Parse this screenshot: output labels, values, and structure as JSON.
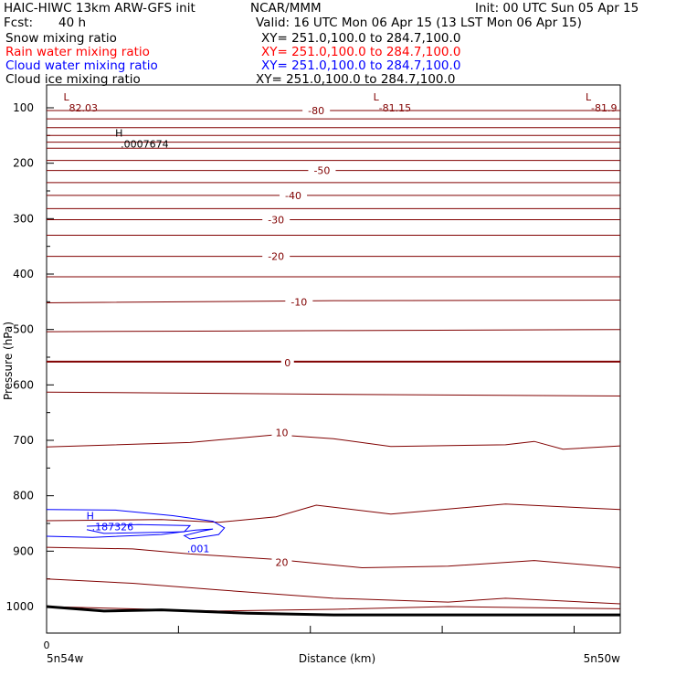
{
  "header": {
    "title": "HAIC-HIWC 13km ARW-GFS init",
    "org": "NCAR/MMM",
    "init": "Init: 00 UTC Sun 05 Apr 15",
    "fcst_label": "Fcst:",
    "fcst_value": "40 h",
    "valid": "Valid: 16 UTC Mon 06 Apr 15 (13 LST Mon 06 Apr 15)"
  },
  "fields": [
    {
      "name": "Snow mixing ratio",
      "xy": "XY= 251.0,100.0 to 284.7,100.0",
      "color": "#000000"
    },
    {
      "name": "Rain water mixing ratio",
      "xy": "XY= 251.0,100.0 to 284.7,100.0",
      "color": "#ff0000"
    },
    {
      "name": "Cloud water mixing ratio",
      "xy": "XY= 251.0,100.0 to 284.7,100.0",
      "color": "#0000ff"
    },
    {
      "name": "Cloud ice mixing ratio",
      "xy": "XY= 251.0,100.0 to 284.7,100.0",
      "color": "#000000"
    }
  ],
  "chart_data": {
    "type": "line",
    "xlabel": "Distance (km)",
    "ylabel": "Pressure (hPa)",
    "x_ticks": [
      "0"
    ],
    "x_endpoints": [
      "5n54w",
      "5n50w"
    ],
    "y_ticks": [
      100,
      200,
      300,
      400,
      500,
      600,
      700,
      800,
      900,
      1000
    ],
    "ylim": [
      1050,
      60
    ],
    "colors": {
      "temperature": "#800000",
      "cloud_water": "#0000ff",
      "terrain": "#000000"
    },
    "isotherm_labels": [
      {
        "text": "-80",
        "p": 105,
        "x": 0.47
      },
      {
        "text": "-50",
        "p": 213,
        "x": 0.48
      },
      {
        "text": "-40",
        "p": 258,
        "x": 0.43
      },
      {
        "text": "-30",
        "p": 302,
        "x": 0.4
      },
      {
        "text": "-20",
        "p": 368,
        "x": 0.4
      },
      {
        "text": "-10",
        "p": 450,
        "x": 0.44
      },
      {
        "text": "0",
        "p": 560,
        "x": 0.42
      },
      {
        "text": "10",
        "p": 686,
        "x": 0.41
      },
      {
        "text": "20",
        "p": 920,
        "x": 0.41
      }
    ],
    "extrema": [
      {
        "kind": "L",
        "value": "82.03",
        "x": 0.02,
        "p": 100
      },
      {
        "kind": "L",
        "value": "-81.15",
        "x": 0.56,
        "p": 100
      },
      {
        "kind": "L",
        "value": "-81.9",
        "x": 0.93,
        "p": 100
      },
      {
        "kind": "H",
        "value": ".0007674",
        "x": 0.11,
        "p": 165
      },
      {
        "kind": "H",
        "value": ".187326",
        "x": 0.06,
        "p": 856
      }
    ],
    "cloud_water_label": ".001",
    "isotherms": [
      {
        "x": [
          0,
          1
        ],
        "p": [
          105,
          105
        ]
      },
      {
        "x": [
          0,
          1
        ],
        "p": [
          120,
          120
        ]
      },
      {
        "x": [
          0,
          1
        ],
        "p": [
          136,
          136
        ]
      },
      {
        "x": [
          0,
          1
        ],
        "p": [
          150,
          150
        ]
      },
      {
        "x": [
          0,
          1
        ],
        "p": [
          162,
          162
        ]
      },
      {
        "x": [
          0,
          1
        ],
        "p": [
          173,
          173
        ]
      },
      {
        "x": [
          0,
          1
        ],
        "p": [
          195,
          195
        ]
      },
      {
        "x": [
          0,
          1
        ],
        "p": [
          213,
          213
        ]
      },
      {
        "x": [
          0,
          1
        ],
        "p": [
          235,
          235
        ]
      },
      {
        "x": [
          0,
          1
        ],
        "p": [
          258,
          258
        ]
      },
      {
        "x": [
          0,
          1
        ],
        "p": [
          282,
          282
        ]
      },
      {
        "x": [
          0,
          1
        ],
        "p": [
          302,
          302
        ]
      },
      {
        "x": [
          0,
          1
        ],
        "p": [
          330,
          330
        ]
      },
      {
        "x": [
          0,
          1
        ],
        "p": [
          368,
          368
        ]
      },
      {
        "x": [
          0,
          1
        ],
        "p": [
          405,
          405
        ]
      },
      {
        "x": [
          0,
          0.5,
          1
        ],
        "p": [
          452,
          448,
          447
        ]
      },
      {
        "x": [
          0,
          0.5,
          1
        ],
        "p": [
          504,
          502,
          500
        ]
      },
      {
        "x": [
          0,
          0.5,
          1
        ],
        "p": [
          558,
          558,
          558
        ]
      },
      {
        "x": [
          0,
          0.5,
          1
        ],
        "p": [
          613,
          617,
          620
        ]
      },
      {
        "x": [
          0,
          0.25,
          0.4,
          0.5,
          0.6,
          0.8,
          0.85,
          0.9,
          1
        ],
        "p": [
          712,
          704,
          690,
          697,
          711,
          708,
          702,
          716,
          710
        ]
      },
      {
        "x": [
          0,
          0.2,
          0.3,
          0.4,
          0.47,
          0.6,
          0.8,
          1
        ],
        "p": [
          845,
          843,
          848,
          838,
          817,
          833,
          815,
          825
        ]
      },
      {
        "x": [
          0,
          0.15,
          0.25,
          0.4,
          0.55,
          0.7,
          0.85,
          1
        ],
        "p": [
          893,
          896,
          905,
          915,
          930,
          927,
          917,
          930
        ]
      },
      {
        "x": [
          0,
          0.15,
          0.3,
          0.5,
          0.7,
          0.8,
          0.9,
          1
        ],
        "p": [
          950,
          958,
          970,
          985,
          992,
          985,
          990,
          995
        ]
      },
      {
        "x": [
          0,
          0.3,
          0.5,
          0.7,
          1
        ],
        "p": [
          1000,
          1008,
          1005,
          1000,
          1004
        ]
      }
    ],
    "cloud_water_contour": {
      "x": [
        0,
        0.12,
        0.22,
        0.29,
        0.31,
        0.3,
        0.25,
        0.24,
        0.27,
        0.29,
        0.26,
        0.2,
        0.08,
        0
      ],
      "p": [
        825,
        826,
        836,
        846,
        858,
        870,
        878,
        872,
        864,
        860,
        862,
        870,
        875,
        873
      ]
    },
    "cloud_water_inner": {
      "x": [
        0.07,
        0.16,
        0.25,
        0.24,
        0.1,
        0.07
      ],
      "p": [
        855,
        852,
        854,
        865,
        868,
        861
      ]
    },
    "terrain": {
      "x": [
        0,
        0.1,
        0.2,
        0.35,
        0.5,
        1
      ],
      "p": [
        1000,
        1008,
        1006,
        1012,
        1015,
        1015
      ]
    }
  }
}
